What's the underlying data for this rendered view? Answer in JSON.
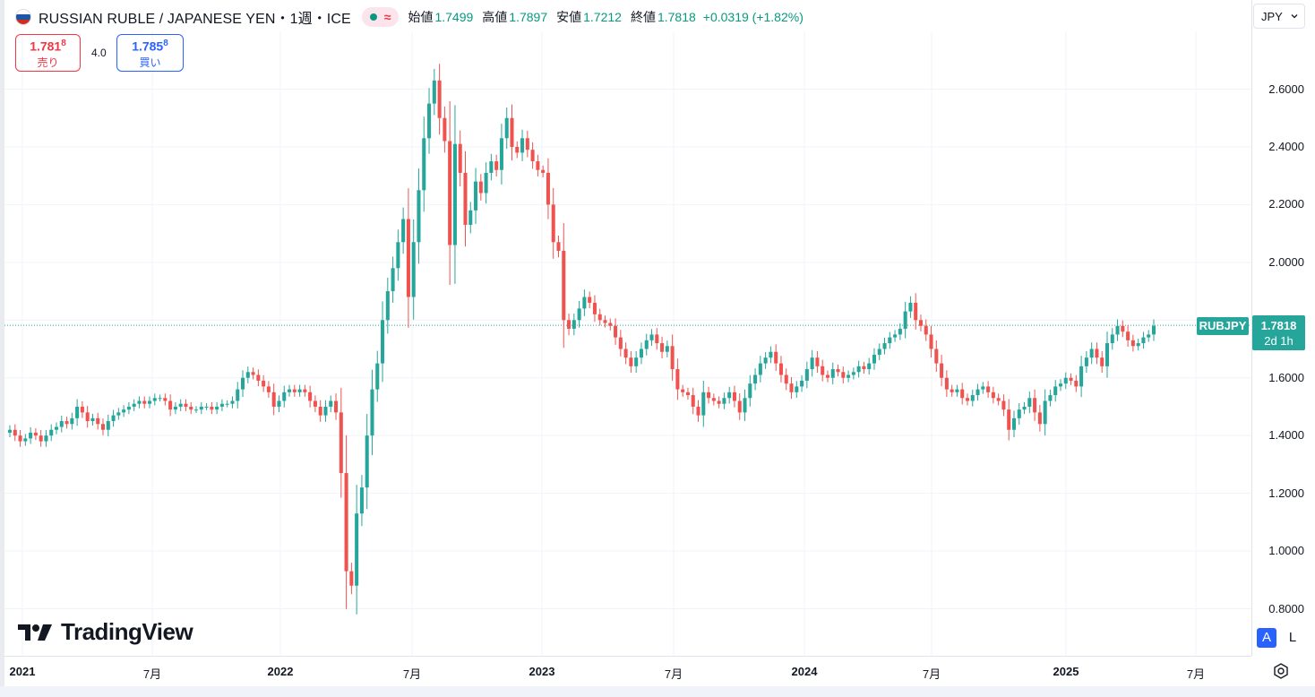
{
  "header": {
    "symbol_title": "RUSSIAN RUBLE / JAPANESE YEN・1週・ICE",
    "status_icon": "market-status-dot",
    "approx_icon": "≈",
    "ohlc": [
      {
        "label": "始値",
        "value": "1.7499"
      },
      {
        "label": "高値",
        "value": "1.7897"
      },
      {
        "label": "安値",
        "value": "1.7212"
      },
      {
        "label": "終値",
        "value": "1.7818"
      }
    ],
    "change": "+0.0319 (+1.82%)"
  },
  "trade": {
    "sell_price_main": "1.781",
    "sell_price_sup": "8",
    "sell_label": "売り",
    "spread": "4.0",
    "buy_price_main": "1.785",
    "buy_price_sup": "8",
    "buy_label": "買い"
  },
  "currency": {
    "value": "JPY",
    "icon": "chevron-down-icon"
  },
  "last_price": {
    "symbol": "RUBJPY",
    "price": "1.7818",
    "countdown": "2d 1h"
  },
  "logo_text": "TradingView",
  "buttons": {
    "auto": "A",
    "log": "L",
    "settings_icon": "gear-icon"
  },
  "colors": {
    "up": "#26a69a",
    "down": "#ef5350",
    "grid": "#f0f3fa",
    "last_price": "#26a69a"
  },
  "chart_data": {
    "type": "candlestick",
    "ylim": [
      0.8,
      2.7
    ],
    "y_ticks": [
      "2.6000",
      "2.4000",
      "2.2000",
      "2.0000",
      "1.8000",
      "1.6000",
      "1.4000",
      "1.2000",
      "1.0000",
      "0.8000"
    ],
    "x_ticks": [
      {
        "label": "2021",
        "year": true
      },
      {
        "label": "7月",
        "year": false
      },
      {
        "label": "2022",
        "year": true
      },
      {
        "label": "7月",
        "year": false
      },
      {
        "label": "2023",
        "year": true
      },
      {
        "label": "7月",
        "year": false
      },
      {
        "label": "2024",
        "year": true
      },
      {
        "label": "7月",
        "year": false
      },
      {
        "label": "2025",
        "year": true
      },
      {
        "label": "7月",
        "year": false
      }
    ],
    "last_close": 1.7818,
    "closes": [
      1.42,
      1.4,
      1.38,
      1.39,
      1.41,
      1.4,
      1.38,
      1.4,
      1.42,
      1.43,
      1.45,
      1.44,
      1.46,
      1.5,
      1.48,
      1.45,
      1.46,
      1.44,
      1.42,
      1.45,
      1.47,
      1.48,
      1.49,
      1.5,
      1.51,
      1.52,
      1.51,
      1.52,
      1.53,
      1.53,
      1.52,
      1.49,
      1.5,
      1.51,
      1.5,
      1.49,
      1.49,
      1.5,
      1.5,
      1.49,
      1.5,
      1.51,
      1.51,
      1.52,
      1.56,
      1.6,
      1.62,
      1.61,
      1.59,
      1.57,
      1.55,
      1.5,
      1.52,
      1.55,
      1.56,
      1.55,
      1.56,
      1.55,
      1.52,
      1.5,
      1.47,
      1.5,
      1.52,
      1.48,
      1.27,
      0.93,
      0.88,
      1.13,
      1.22,
      1.4,
      1.56,
      1.65,
      1.8,
      1.9,
      1.98,
      2.07,
      2.15,
      1.88,
      2.07,
      2.25,
      2.43,
      2.55,
      2.63,
      2.5,
      2.42,
      2.06,
      2.41,
      2.31,
      2.13,
      2.18,
      2.28,
      2.24,
      2.31,
      2.35,
      2.32,
      2.43,
      2.5,
      2.4,
      2.38,
      2.43,
      2.39,
      2.35,
      2.32,
      2.31,
      2.2,
      2.07,
      2.04,
      1.8,
      1.77,
      1.8,
      1.84,
      1.88,
      1.86,
      1.82,
      1.8,
      1.79,
      1.78,
      1.74,
      1.7,
      1.67,
      1.64,
      1.67,
      1.7,
      1.73,
      1.75,
      1.72,
      1.69,
      1.71,
      1.63,
      1.56,
      1.55,
      1.54,
      1.5,
      1.47,
      1.55,
      1.53,
      1.52,
      1.51,
      1.53,
      1.55,
      1.52,
      1.48,
      1.53,
      1.58,
      1.61,
      1.65,
      1.67,
      1.69,
      1.65,
      1.61,
      1.58,
      1.55,
      1.57,
      1.59,
      1.63,
      1.67,
      1.64,
      1.61,
      1.6,
      1.63,
      1.62,
      1.6,
      1.61,
      1.62,
      1.64,
      1.63,
      1.65,
      1.68,
      1.7,
      1.72,
      1.74,
      1.75,
      1.77,
      1.83,
      1.86,
      1.8,
      1.78,
      1.75,
      1.7,
      1.65,
      1.6,
      1.56,
      1.55,
      1.56,
      1.53,
      1.52,
      1.54,
      1.56,
      1.57,
      1.55,
      1.53,
      1.52,
      1.49,
      1.42,
      1.46,
      1.49,
      1.5,
      1.53,
      1.48,
      1.44,
      1.52,
      1.54,
      1.57,
      1.58,
      1.6,
      1.59,
      1.57,
      1.64,
      1.67,
      1.7,
      1.67,
      1.64,
      1.72,
      1.75,
      1.78,
      1.76,
      1.73,
      1.71,
      1.72,
      1.74,
      1.75,
      1.78
    ]
  }
}
